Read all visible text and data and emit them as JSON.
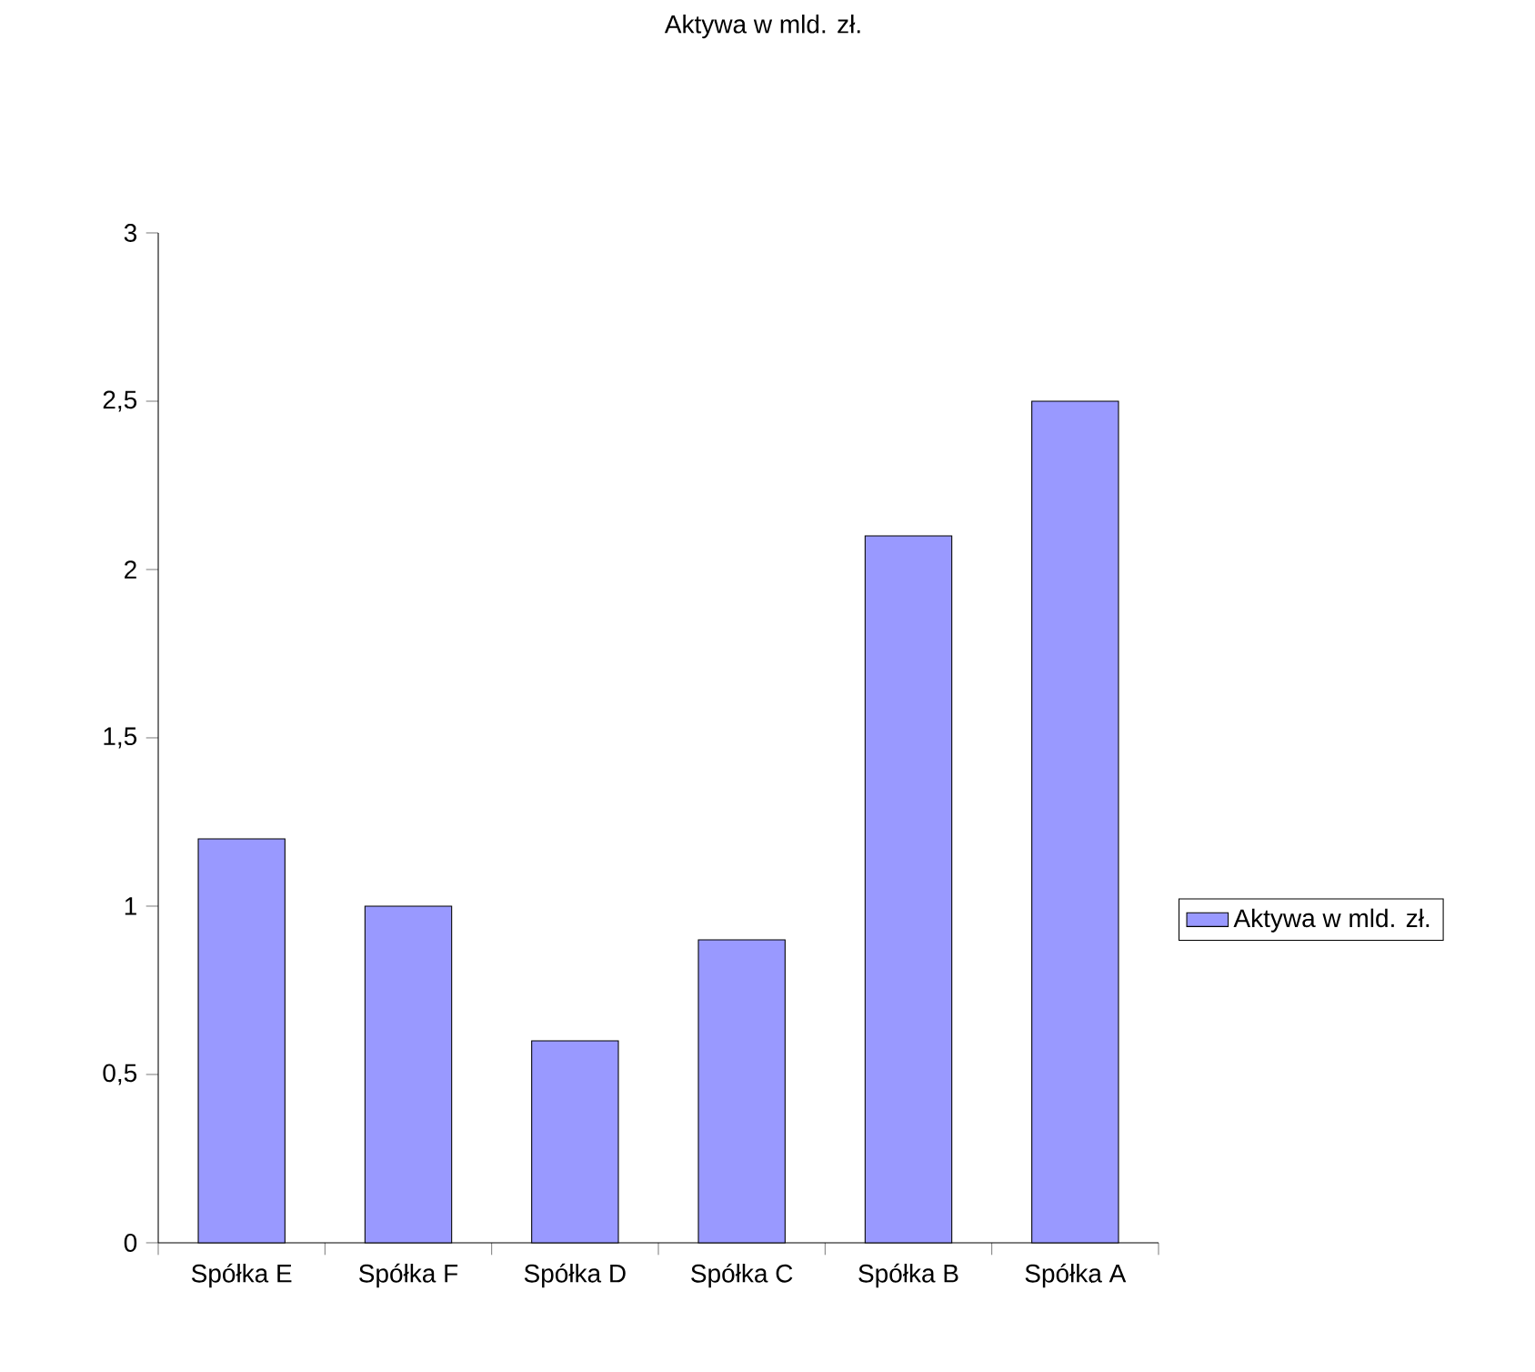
{
  "chart_data": {
    "type": "bar",
    "title": "Aktywa w mld. zł.",
    "categories": [
      "Spółka E",
      "Spółka F",
      "Spółka D",
      "Spółka C",
      "Spółka B",
      "Spółka A"
    ],
    "series": [
      {
        "name": "Aktywa w mld. zł.",
        "color": "#9999ff",
        "values": [
          1.2,
          1.0,
          0.6,
          0.9,
          2.1,
          2.5
        ]
      }
    ],
    "ylim": [
      0,
      3
    ],
    "yticks": [
      0,
      {
        "value": 0.5,
        "label": "0,5"
      },
      1,
      {
        "value": 1.5,
        "label": "1,5"
      },
      2,
      {
        "value": 2.5,
        "label": "2,5"
      },
      3
    ],
    "grid": false,
    "legend": "right"
  }
}
